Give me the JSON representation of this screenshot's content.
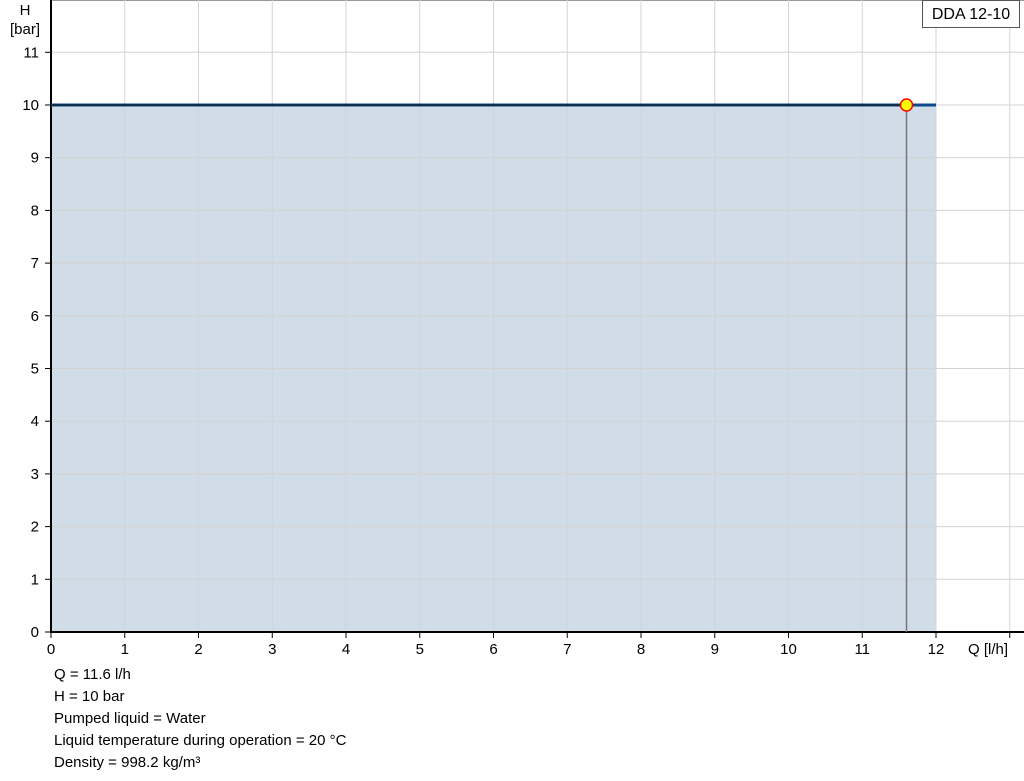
{
  "chart_data": {
    "type": "area",
    "legend": "DDA 12-10",
    "legend_placement": "top-right",
    "xlabel": "Q [l/h]",
    "ylabel_line1": "H",
    "ylabel_line2": "[bar]",
    "xlim": [
      0,
      13.2
    ],
    "ylim": [
      0,
      12
    ],
    "x_ticks": [
      "0",
      "1",
      "2",
      "3",
      "4",
      "5",
      "6",
      "7",
      "8",
      "9",
      "10",
      "11",
      "12"
    ],
    "y_ticks": [
      "0",
      "1",
      "2",
      "3",
      "4",
      "5",
      "6",
      "7",
      "8",
      "9",
      "10",
      "11"
    ],
    "grid": true,
    "series": [
      {
        "x": [
          0,
          12
        ],
        "y": [
          10,
          10
        ]
      }
    ],
    "duty_point": {
      "x": 11.6,
      "y": 10
    },
    "colors": {
      "fill": "#d0dce7",
      "line": "#0b4a8a",
      "grid": "#d3d3d3",
      "point_fill": "#ffff00",
      "point_stroke": "#ff0000"
    }
  },
  "info": [
    "Q = 11.6 l/h",
    "H = 10 bar",
    "Pumped liquid = Water",
    "Liquid temperature during operation = 20 °C",
    "Density = 998.2 kg/m³"
  ]
}
